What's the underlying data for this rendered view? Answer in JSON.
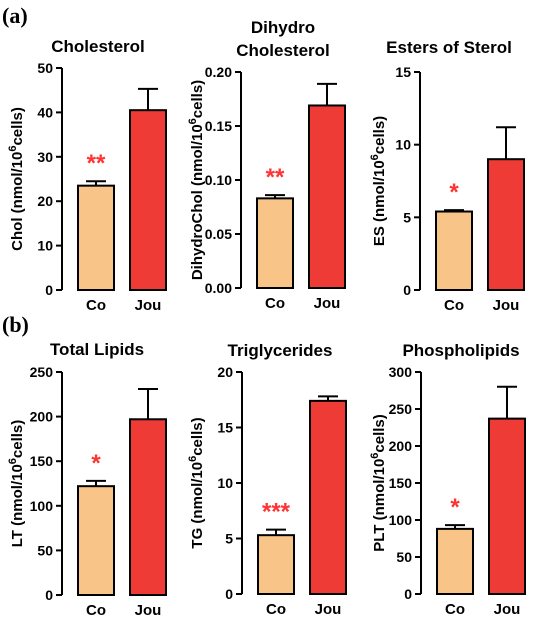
{
  "panel_labels": [
    "(a)",
    "(b)"
  ],
  "colors": {
    "control": "#f9c487",
    "jou": "#ef3b35",
    "star": "#ff3333",
    "outline": "#000000"
  },
  "chart_data": [
    {
      "type": "bar",
      "title_lines": [
        "Cholesterol"
      ],
      "ylabel_base": "Chol (nmol/10",
      "ylabel_sup": "6",
      "ylabel_end": "cells)",
      "categories": [
        "Co",
        "Jou"
      ],
      "values": [
        23.5,
        40.5
      ],
      "errors": [
        1.0,
        4.8
      ],
      "ylim": [
        0,
        50
      ],
      "yticks": [
        "0",
        "10",
        "20",
        "30",
        "40",
        "50"
      ],
      "significance": "**"
    },
    {
      "type": "bar",
      "title_lines": [
        "Dihydro",
        "Cholesterol"
      ],
      "ylabel_base": "DihydroChol (nmol/10",
      "ylabel_sup": "6",
      "ylabel_end": "cells)",
      "categories": [
        "Co",
        "Jou"
      ],
      "values": [
        0.083,
        0.169
      ],
      "errors": [
        0.003,
        0.02
      ],
      "ylim": [
        0,
        0.2
      ],
      "yticks": [
        "0.00",
        "0.05",
        "0.10",
        "0.15",
        "0.20"
      ],
      "significance": "**"
    },
    {
      "type": "bar",
      "title_lines": [
        "Esters of Sterol"
      ],
      "ylabel_base": "ES (nmol/10",
      "ylabel_sup": "6",
      "ylabel_end": "cells)",
      "categories": [
        "Co",
        "Jou"
      ],
      "values": [
        5.4,
        9.0
      ],
      "errors": [
        0.1,
        2.2
      ],
      "ylim": [
        0,
        15
      ],
      "yticks": [
        "0",
        "5",
        "10",
        "15"
      ],
      "significance": "*"
    },
    {
      "type": "bar",
      "title_lines": [
        "Total Lipids"
      ],
      "ylabel_base": "LT (nmol/10",
      "ylabel_sup": "6",
      "ylabel_end": "cells)",
      "categories": [
        "Co",
        "Jou"
      ],
      "values": [
        122,
        197
      ],
      "errors": [
        6,
        34
      ],
      "ylim": [
        0,
        250
      ],
      "yticks": [
        "0",
        "50",
        "100",
        "150",
        "200",
        "250"
      ],
      "significance": "*"
    },
    {
      "type": "bar",
      "title_lines": [
        "Triglycerides"
      ],
      "ylabel_base": "TG (nmol/10",
      "ylabel_sup": "6",
      "ylabel_end": "cells)",
      "categories": [
        "Co",
        "Jou"
      ],
      "values": [
        5.3,
        17.4
      ],
      "errors": [
        0.5,
        0.4
      ],
      "ylim": [
        0,
        20
      ],
      "yticks": [
        "0",
        "5",
        "10",
        "15",
        "20"
      ],
      "significance": "***"
    },
    {
      "type": "bar",
      "title_lines": [
        "Phospholipids"
      ],
      "ylabel_base": "PLT (nmol/10",
      "ylabel_sup": "6",
      "ylabel_end": "cells)",
      "categories": [
        "Co",
        "Jou"
      ],
      "values": [
        88,
        237
      ],
      "errors": [
        5,
        43
      ],
      "ylim": [
        0,
        300
      ],
      "yticks": [
        "0",
        "50",
        "100",
        "150",
        "200",
        "250",
        "300"
      ],
      "significance": "*"
    }
  ]
}
